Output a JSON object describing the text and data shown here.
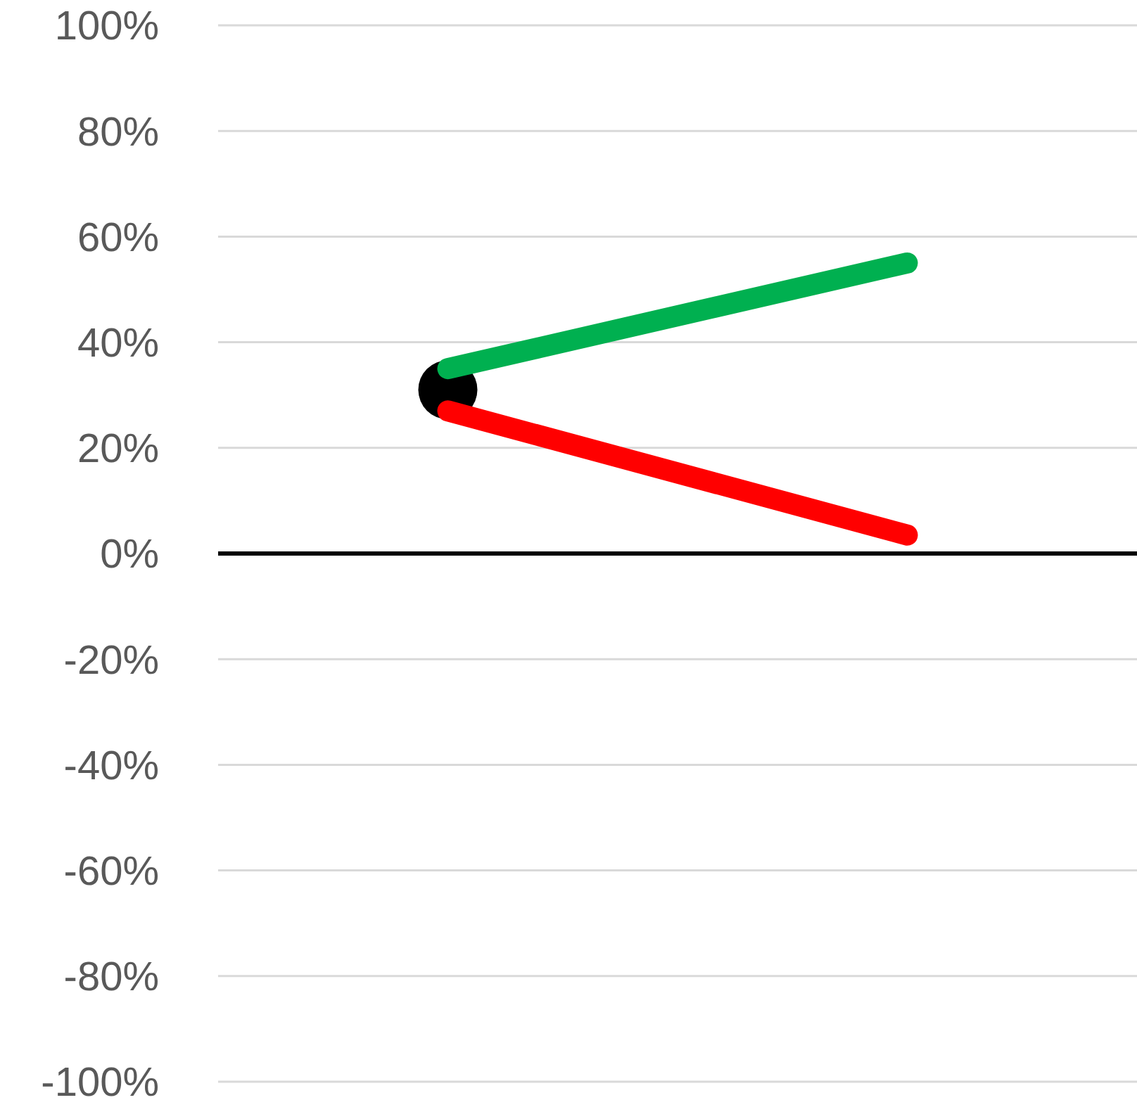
{
  "chart_data": {
    "type": "line",
    "categories": [
      null,
      null
    ],
    "series": [
      {
        "color": "#00b050",
        "values": [
          35,
          55
        ],
        "marker": "none"
      },
      {
        "color": "#ff0000",
        "values": [
          27,
          3.5
        ],
        "marker": "none"
      },
      {
        "type": "scatter",
        "color": "#000000",
        "values": [
          31,
          null
        ],
        "marker": "circle"
      }
    ],
    "ylim": [
      -100,
      100
    ],
    "yticks": [
      {
        "value": -100,
        "label": "-100%"
      },
      {
        "value": -80,
        "label": "-80%"
      },
      {
        "value": -60,
        "label": "-60%"
      },
      {
        "value": -40,
        "label": "-40%"
      },
      {
        "value": -20,
        "label": "-20%"
      },
      {
        "value": 0,
        "label": "0%"
      },
      {
        "value": 20,
        "label": "20%"
      },
      {
        "value": 40,
        "label": "40%"
      },
      {
        "value": 60,
        "label": "60%"
      },
      {
        "value": 80,
        "label": "80%"
      },
      {
        "value": 100,
        "label": "100%"
      }
    ],
    "grid": "y",
    "line_style": "solid"
  }
}
